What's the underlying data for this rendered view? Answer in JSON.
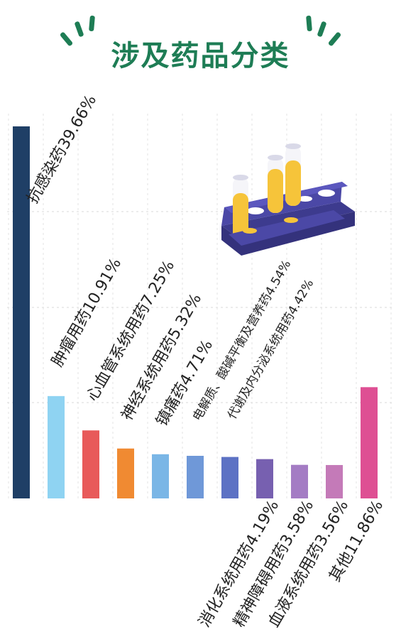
{
  "title": "涉及药品分类",
  "chart_data": {
    "type": "bar",
    "ylim": [
      0,
      40
    ],
    "categories": [
      "抗感染药",
      "肿瘤用药",
      "心血管系统用药",
      "神经系统用药",
      "镇痛药",
      "电解质、酸碱平衡及营养药",
      "代谢及内分泌系统用药",
      "消化系统用药",
      "精神障碍用药",
      "血液系统用药",
      "其他"
    ],
    "values": [
      39.66,
      10.91,
      7.25,
      5.32,
      4.71,
      4.54,
      4.42,
      4.19,
      3.58,
      3.56,
      11.86
    ],
    "labels": [
      "抗感染药39.66%",
      "肿瘤用药10.91%",
      "心血管系统用药7.25%",
      "神经系统用药5.32%",
      "镇痛药4.71%",
      "电解质、酸碱平衡及营养药4.54%",
      "代谢及内分泌系统用药4.42%",
      "消化系统用药4.19%",
      "精神障碍用药3.58%",
      "血液系统用药3.56%",
      "其他11.86%"
    ],
    "colors": [
      "#1f3f66",
      "#8fd3f2",
      "#e85a5a",
      "#f08a32",
      "#7ab6e6",
      "#6f98d8",
      "#5d72c4",
      "#7760b0",
      "#a47cc4",
      "#c47ab8",
      "#de4f93"
    ]
  }
}
